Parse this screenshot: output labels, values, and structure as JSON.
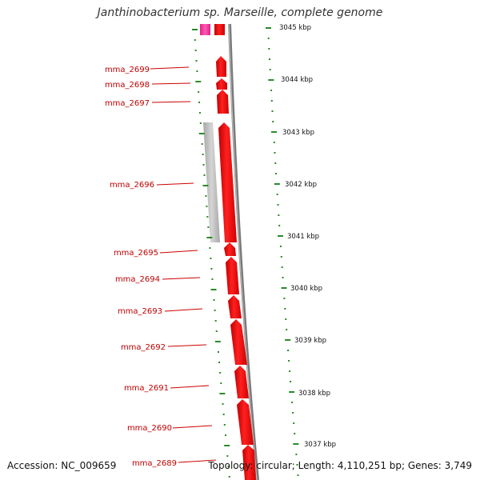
{
  "title": "Janthinobacterium sp. Marseille, complete genome",
  "footer": {
    "accession": "Accession: NC_009659",
    "topology": "Topology: circular; Length: 4,110,251 bp; Genes: 3,749"
  },
  "colors": {
    "gene_forward": "#ff0000",
    "gene_other": "#ff40a0",
    "pseudogene": "#b8b8b8",
    "backbone": "#888888",
    "tick": "#2a8a2a",
    "label": "#c00000"
  },
  "genes": [
    {
      "name": "mma_2699"
    },
    {
      "name": "mma_2698"
    },
    {
      "name": "mma_2697"
    },
    {
      "name": "mma_2696"
    },
    {
      "name": "mma_2695"
    },
    {
      "name": "mma_2694"
    },
    {
      "name": "mma_2693"
    },
    {
      "name": "mma_2692"
    },
    {
      "name": "mma_2691"
    },
    {
      "name": "mma_2690"
    },
    {
      "name": "mma_2689"
    }
  ],
  "kbp_ticks": [
    "3045 kbp",
    "3044 kbp",
    "3043 kbp",
    "3042 kbp",
    "3041 kbp",
    "3040 kbp",
    "3039 kbp",
    "3038 kbp",
    "3037 kbp"
  ]
}
